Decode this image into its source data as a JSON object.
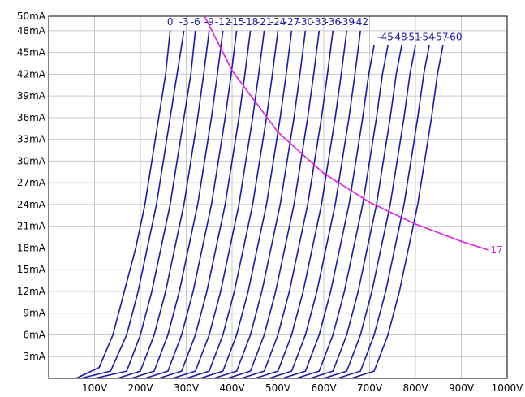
{
  "chart_data": {
    "type": "line",
    "title": "",
    "xlabel": "",
    "ylabel": "",
    "x_unit": "V",
    "y_unit": "mA",
    "xlim": [
      0,
      1000
    ],
    "ylim": [
      0,
      50
    ],
    "x_ticks": [
      100,
      200,
      300,
      400,
      500,
      600,
      700,
      800,
      900,
      1000
    ],
    "y_ticks": [
      3,
      6,
      9,
      12,
      15,
      18,
      21,
      24,
      27,
      30,
      33,
      36,
      39,
      42,
      45,
      48,
      50
    ],
    "x_tick_labels": [
      "100V",
      "200V",
      "300V",
      "400V",
      "500V",
      "600V",
      "700V",
      "800V",
      "900V",
      "1000V"
    ],
    "y_tick_labels": [
      "3mA",
      "6mA",
      "9mA",
      "12mA",
      "15mA",
      "18mA",
      "21mA",
      "24mA",
      "27mA",
      "30mA",
      "33mA",
      "36mA",
      "39mA",
      "42mA",
      "45mA",
      "48mA",
      "50mA"
    ],
    "grid": true,
    "colors": {
      "curves": "#1a1aa6",
      "pmax": "#e020e0",
      "grid": "#c8c8c8",
      "axis": "#000000"
    },
    "series": [
      {
        "name": "0",
        "label_position": "top",
        "points": [
          [
            60,
            0
          ],
          [
            110,
            1.5
          ],
          [
            140,
            6
          ],
          [
            165,
            12
          ],
          [
            190,
            18
          ],
          [
            210,
            24
          ],
          [
            225,
            30
          ],
          [
            240,
            36
          ],
          [
            255,
            42
          ],
          [
            265,
            48
          ]
        ]
      },
      {
        "name": "-3",
        "label_position": "top",
        "points": [
          [
            70,
            0
          ],
          [
            135,
            1
          ],
          [
            170,
            6
          ],
          [
            195,
            12
          ],
          [
            215,
            18
          ],
          [
            235,
            24
          ],
          [
            250,
            30
          ],
          [
            265,
            36
          ],
          [
            280,
            42
          ],
          [
            295,
            48
          ]
        ]
      },
      {
        "name": "-6",
        "label_position": "top",
        "points": [
          [
            100,
            0
          ],
          [
            170,
            1
          ],
          [
            200,
            6
          ],
          [
            225,
            12
          ],
          [
            245,
            18
          ],
          [
            265,
            24
          ],
          [
            280,
            30
          ],
          [
            295,
            36
          ],
          [
            310,
            42
          ],
          [
            320,
            48
          ]
        ]
      },
      {
        "name": "-9",
        "label_position": "top",
        "points": [
          [
            150,
            0
          ],
          [
            200,
            1
          ],
          [
            230,
            6
          ],
          [
            255,
            12
          ],
          [
            275,
            18
          ],
          [
            295,
            24
          ],
          [
            310,
            30
          ],
          [
            325,
            36
          ],
          [
            338,
            42
          ],
          [
            350,
            48
          ]
        ]
      },
      {
        "name": "-12",
        "label_position": "top",
        "points": [
          [
            180,
            0
          ],
          [
            230,
            1
          ],
          [
            260,
            6
          ],
          [
            285,
            12
          ],
          [
            305,
            18
          ],
          [
            325,
            24
          ],
          [
            340,
            30
          ],
          [
            355,
            36
          ],
          [
            368,
            42
          ],
          [
            380,
            48
          ]
        ]
      },
      {
        "name": "-15",
        "label_position": "top",
        "points": [
          [
            210,
            0
          ],
          [
            260,
            1
          ],
          [
            290,
            6
          ],
          [
            315,
            12
          ],
          [
            335,
            18
          ],
          [
            355,
            24
          ],
          [
            370,
            30
          ],
          [
            385,
            36
          ],
          [
            398,
            42
          ],
          [
            410,
            48
          ]
        ]
      },
      {
        "name": "-18",
        "label_position": "top",
        "points": [
          [
            240,
            0
          ],
          [
            290,
            1
          ],
          [
            320,
            6
          ],
          [
            345,
            12
          ],
          [
            365,
            18
          ],
          [
            385,
            24
          ],
          [
            400,
            30
          ],
          [
            415,
            36
          ],
          [
            428,
            42
          ],
          [
            440,
            48
          ]
        ]
      },
      {
        "name": "-21",
        "label_position": "top",
        "points": [
          [
            270,
            0
          ],
          [
            320,
            1
          ],
          [
            350,
            6
          ],
          [
            375,
            12
          ],
          [
            395,
            18
          ],
          [
            415,
            24
          ],
          [
            430,
            30
          ],
          [
            445,
            36
          ],
          [
            458,
            42
          ],
          [
            470,
            48
          ]
        ]
      },
      {
        "name": "-24",
        "label_position": "top",
        "points": [
          [
            300,
            0
          ],
          [
            350,
            1
          ],
          [
            380,
            6
          ],
          [
            405,
            12
          ],
          [
            425,
            18
          ],
          [
            445,
            24
          ],
          [
            460,
            30
          ],
          [
            475,
            36
          ],
          [
            488,
            42
          ],
          [
            500,
            48
          ]
        ]
      },
      {
        "name": "-27",
        "label_position": "top",
        "points": [
          [
            330,
            0
          ],
          [
            380,
            1
          ],
          [
            410,
            6
          ],
          [
            435,
            12
          ],
          [
            455,
            18
          ],
          [
            475,
            24
          ],
          [
            490,
            30
          ],
          [
            505,
            36
          ],
          [
            518,
            42
          ],
          [
            530,
            48
          ]
        ]
      },
      {
        "name": "-30",
        "label_position": "top",
        "points": [
          [
            360,
            0
          ],
          [
            410,
            1
          ],
          [
            440,
            6
          ],
          [
            465,
            12
          ],
          [
            485,
            18
          ],
          [
            505,
            24
          ],
          [
            520,
            30
          ],
          [
            535,
            36
          ],
          [
            548,
            42
          ],
          [
            560,
            48
          ]
        ]
      },
      {
        "name": "-33",
        "label_position": "top",
        "points": [
          [
            390,
            0
          ],
          [
            440,
            1
          ],
          [
            470,
            6
          ],
          [
            495,
            12
          ],
          [
            515,
            18
          ],
          [
            535,
            24
          ],
          [
            550,
            30
          ],
          [
            565,
            36
          ],
          [
            578,
            42
          ],
          [
            590,
            48
          ]
        ]
      },
      {
        "name": "-36",
        "label_position": "top",
        "points": [
          [
            420,
            0
          ],
          [
            470,
            1
          ],
          [
            500,
            6
          ],
          [
            525,
            12
          ],
          [
            545,
            18
          ],
          [
            565,
            24
          ],
          [
            580,
            30
          ],
          [
            595,
            36
          ],
          [
            608,
            42
          ],
          [
            620,
            48
          ]
        ]
      },
      {
        "name": "-39",
        "label_position": "top",
        "points": [
          [
            450,
            0
          ],
          [
            500,
            1
          ],
          [
            530,
            6
          ],
          [
            555,
            12
          ],
          [
            575,
            18
          ],
          [
            595,
            24
          ],
          [
            610,
            30
          ],
          [
            625,
            36
          ],
          [
            638,
            42
          ],
          [
            650,
            48
          ]
        ]
      },
      {
        "name": "-42",
        "label_position": "top",
        "points": [
          [
            480,
            0
          ],
          [
            530,
            1
          ],
          [
            560,
            6
          ],
          [
            585,
            12
          ],
          [
            605,
            18
          ],
          [
            625,
            24
          ],
          [
            640,
            30
          ],
          [
            655,
            36
          ],
          [
            668,
            42
          ],
          [
            680,
            48
          ]
        ]
      },
      {
        "name": "-45",
        "label_position": "right",
        "points": [
          [
            510,
            0
          ],
          [
            560,
            1
          ],
          [
            590,
            6
          ],
          [
            615,
            12
          ],
          [
            635,
            18
          ],
          [
            655,
            24
          ],
          [
            670,
            30
          ],
          [
            685,
            36
          ],
          [
            698,
            42
          ],
          [
            710,
            46
          ]
        ]
      },
      {
        "name": "-48",
        "label_position": "right",
        "points": [
          [
            540,
            0
          ],
          [
            590,
            1
          ],
          [
            620,
            6
          ],
          [
            645,
            12
          ],
          [
            665,
            18
          ],
          [
            685,
            24
          ],
          [
            700,
            30
          ],
          [
            715,
            36
          ],
          [
            728,
            42
          ],
          [
            740,
            46
          ]
        ]
      },
      {
        "name": "-51",
        "label_position": "right",
        "points": [
          [
            570,
            0
          ],
          [
            620,
            1
          ],
          [
            650,
            6
          ],
          [
            675,
            12
          ],
          [
            695,
            18
          ],
          [
            715,
            24
          ],
          [
            730,
            30
          ],
          [
            745,
            36
          ],
          [
            758,
            42
          ],
          [
            770,
            46
          ]
        ]
      },
      {
        "name": "-54",
        "label_position": "right",
        "points": [
          [
            600,
            0
          ],
          [
            650,
            1
          ],
          [
            680,
            6
          ],
          [
            705,
            12
          ],
          [
            725,
            18
          ],
          [
            745,
            24
          ],
          [
            760,
            30
          ],
          [
            775,
            36
          ],
          [
            788,
            42
          ],
          [
            800,
            46
          ]
        ]
      },
      {
        "name": "-57",
        "label_position": "right",
        "points": [
          [
            630,
            0
          ],
          [
            680,
            1
          ],
          [
            710,
            6
          ],
          [
            735,
            12
          ],
          [
            755,
            18
          ],
          [
            775,
            24
          ],
          [
            790,
            30
          ],
          [
            805,
            36
          ],
          [
            818,
            42
          ],
          [
            830,
            46
          ]
        ]
      },
      {
        "name": "-60",
        "label_position": "right",
        "points": [
          [
            660,
            0
          ],
          [
            710,
            1
          ],
          [
            740,
            6
          ],
          [
            765,
            12
          ],
          [
            785,
            18
          ],
          [
            805,
            24
          ],
          [
            820,
            30
          ],
          [
            835,
            36
          ],
          [
            848,
            42
          ],
          [
            860,
            46
          ]
        ]
      }
    ],
    "pmax_curve": {
      "name": "17",
      "label_position": "right",
      "points": [
        [
          340,
          50
        ],
        [
          400,
          42.5
        ],
        [
          500,
          34
        ],
        [
          600,
          28.3
        ],
        [
          700,
          24.3
        ],
        [
          800,
          21.3
        ],
        [
          900,
          18.9
        ],
        [
          960,
          17.7
        ]
      ]
    }
  }
}
